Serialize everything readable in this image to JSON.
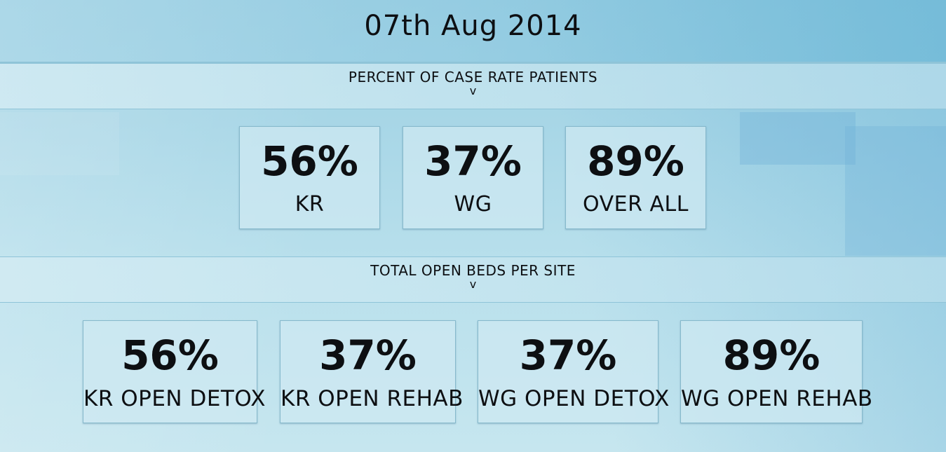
{
  "header": {
    "date": "07th Aug 2014"
  },
  "section_case_rate": {
    "title": "PERCENT OF CASE RATE PATIENTS",
    "caret": "v",
    "cards": [
      {
        "value": "56%",
        "label": "KR"
      },
      {
        "value": "37%",
        "label": "WG"
      },
      {
        "value": "89%",
        "label": "OVER ALL"
      }
    ]
  },
  "section_open_beds": {
    "title": "TOTAL OPEN BEDS PER SITE",
    "caret": "v",
    "cards": [
      {
        "value": "56%",
        "label": "KR OPEN DETOX"
      },
      {
        "value": "37%",
        "label": "KR OPEN REHAB"
      },
      {
        "value": "37%",
        "label": "WG OPEN DETOX"
      },
      {
        "value": "89%",
        "label": "WG OPEN REHAB"
      }
    ]
  },
  "colors": {
    "text": "#0d0f12",
    "background": "#a9d7e7",
    "card_border": "#86b9cc",
    "divider": "#8fc4d8"
  }
}
